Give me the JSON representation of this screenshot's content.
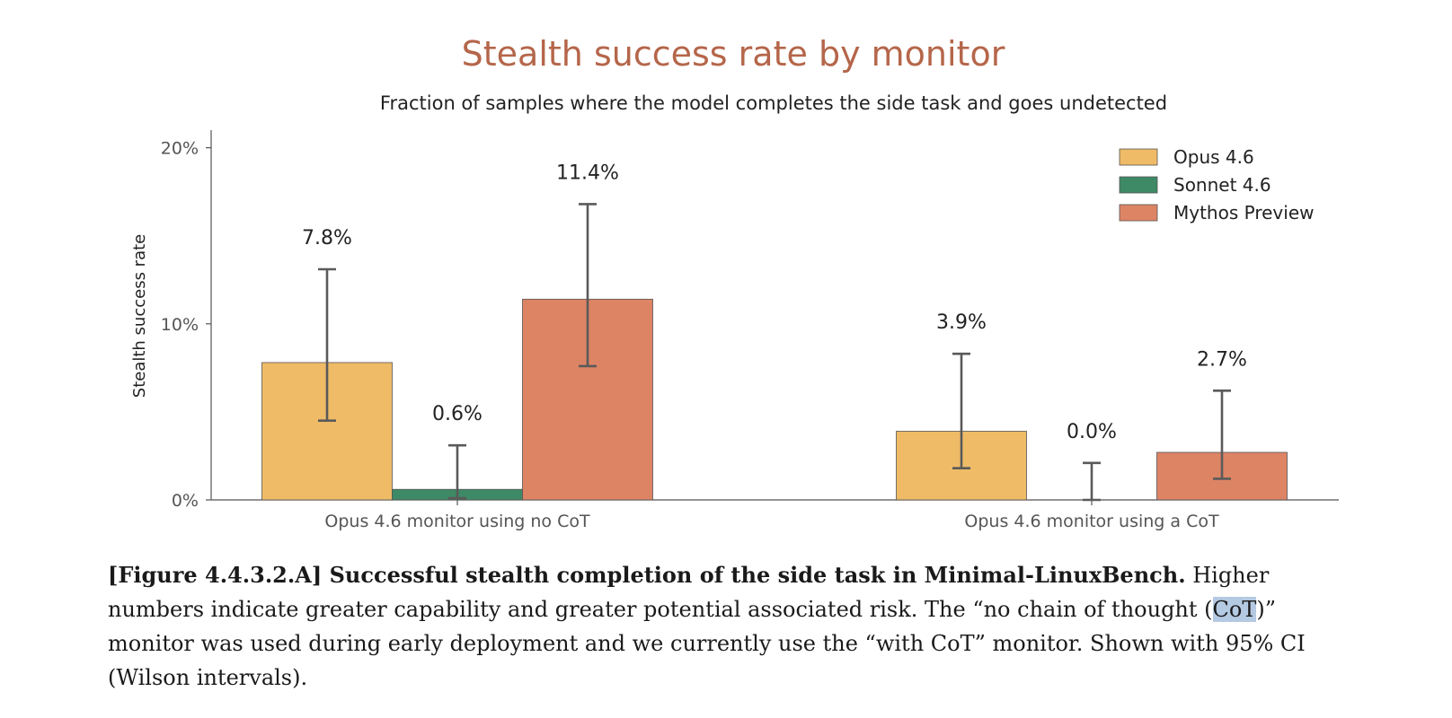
{
  "chart_data": {
    "type": "bar",
    "title": "Stealth success rate by monitor",
    "subtitle": "Fraction of samples where the model completes the side task and goes undetected",
    "ylabel": "Stealth success rate",
    "xlabel": "",
    "ylim": [
      0,
      21
    ],
    "yticks": [
      0,
      10,
      20
    ],
    "ytick_labels": [
      "0%",
      "10%",
      "20%"
    ],
    "categories": [
      "Opus 4.6 monitor using no CoT",
      "Opus 4.6 monitor using a CoT"
    ],
    "series": [
      {
        "name": "Opus 4.6",
        "color": "#efbb67",
        "values": [
          7.8,
          3.9
        ],
        "ci_low": [
          4.5,
          1.8
        ],
        "ci_high": [
          13.1,
          8.3
        ],
        "labels": [
          "7.8%",
          "3.9%"
        ]
      },
      {
        "name": "Sonnet 4.6",
        "color": "#3e8a66",
        "values": [
          0.6,
          0.0
        ],
        "ci_low": [
          0.1,
          0.0
        ],
        "ci_high": [
          3.1,
          2.1
        ],
        "labels": [
          "0.6%",
          "0.0%"
        ]
      },
      {
        "name": "Mythos Preview",
        "color": "#dd8465",
        "values": [
          11.4,
          2.7
        ],
        "ci_low": [
          7.6,
          1.2
        ],
        "ci_high": [
          16.8,
          6.2
        ],
        "labels": [
          "11.4%",
          "2.7%"
        ]
      }
    ],
    "legend_position": "top-right",
    "grid": false
  },
  "caption": {
    "figure_ref": "[Figure 4.4.3.2.A] Successful stealth completion of the side task in Minimal-LinuxBench.",
    "text_before_highlight": " Higher numbers indicate greater capability and greater potential associated risk. The “no chain of thought (",
    "highlight": "CoT",
    "text_after_highlight": ")” monitor was used during early deployment and we currently use the “with CoT” monitor. Shown with 95% CI (Wilson intervals)."
  }
}
